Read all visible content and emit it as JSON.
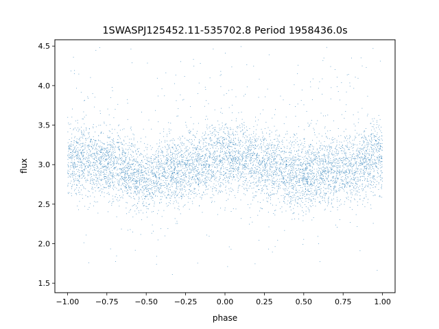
{
  "chart_data": {
    "type": "scatter",
    "title": "1SWASPJ125452.11-535702.8 Period 1958436.0s",
    "xlabel": "phase",
    "ylabel": "flux",
    "xlim": [
      -1.08,
      1.08
    ],
    "ylim": [
      1.38,
      4.58
    ],
    "x_ticks": [
      -1.0,
      -0.75,
      -0.5,
      -0.25,
      0.0,
      0.25,
      0.5,
      0.75,
      1.0
    ],
    "x_tick_labels": [
      "−1.00",
      "−0.75",
      "−0.50",
      "−0.25",
      "0.00",
      "0.25",
      "0.50",
      "0.75",
      "1.00"
    ],
    "y_ticks": [
      1.5,
      2.0,
      2.5,
      3.0,
      3.5,
      4.0,
      4.5
    ],
    "y_tick_labels": [
      "1.5",
      "2.0",
      "2.5",
      "3.0",
      "3.5",
      "4.0",
      "4.5"
    ],
    "grid": false,
    "marker_color": "#1f77b4",
    "phase_range": [
      -1.0,
      1.0
    ],
    "flux_profile": {
      "phase": [
        -1.0,
        -0.75,
        -0.5,
        -0.25,
        0.0,
        0.25,
        0.5,
        0.75,
        1.0
      ],
      "median_flux": [
        3.1,
        3.0,
        2.85,
        2.95,
        3.1,
        3.0,
        2.85,
        2.95,
        3.1
      ]
    },
    "flux_spread": 0.22,
    "flux_extremes": [
      1.55,
      4.5
    ]
  }
}
